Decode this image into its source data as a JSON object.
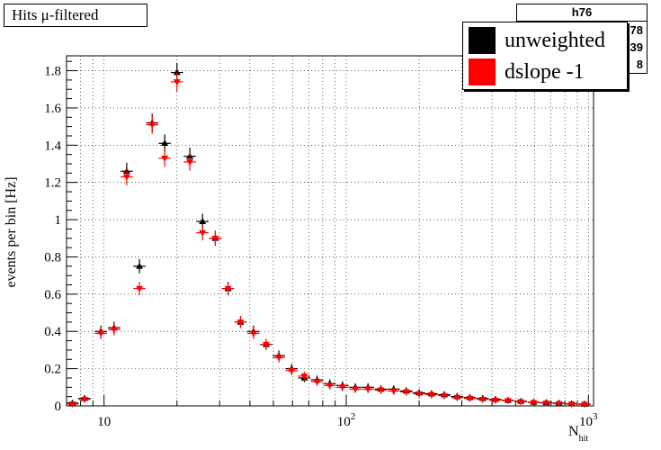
{
  "title": "Hits μ-filtered",
  "stats": {
    "name": "h76",
    "rows": [
      "78",
      "39",
      "8"
    ]
  },
  "legend": [
    {
      "label": "unweighted",
      "color": "#000000"
    },
    {
      "label": "dslope -1",
      "color": "#ff0000"
    }
  ],
  "chart_data": {
    "type": "scatter",
    "xlabel": "N",
    "xlabel_sub": "hit",
    "ylabel": "events per bin [Hz]",
    "xscale": "log",
    "xlim": [
      7,
      1050
    ],
    "ylim": [
      0,
      1.88
    ],
    "xticks": [
      {
        "value": 10,
        "base": "10",
        "exp": ""
      },
      {
        "value": 100,
        "base": "10",
        "exp": "2"
      },
      {
        "value": 1000,
        "base": "10",
        "exp": "3"
      }
    ],
    "yticks": [
      "0",
      "0.2",
      "0.4",
      "0.6",
      "0.8",
      "1",
      "1.2",
      "1.4",
      "1.6",
      "1.8"
    ],
    "grid": true,
    "series": [
      {
        "name": "unweighted",
        "color": "#000000",
        "marker": "triangle-up",
        "points": [
          [
            7.4,
            0.015
          ],
          [
            8.3,
            0.04
          ],
          [
            9.7,
            0.4
          ],
          [
            11.0,
            0.42
          ],
          [
            12.4,
            1.26
          ],
          [
            14.0,
            0.75
          ],
          [
            15.8,
            1.52
          ],
          [
            17.8,
            1.41
          ],
          [
            20.0,
            1.79
          ],
          [
            22.6,
            1.34
          ],
          [
            25.5,
            0.99
          ],
          [
            28.8,
            0.9
          ],
          [
            32.5,
            0.63
          ],
          [
            36.6,
            0.45
          ],
          [
            41.4,
            0.4
          ],
          [
            46.7,
            0.33
          ],
          [
            52.7,
            0.27
          ],
          [
            59.5,
            0.2
          ],
          [
            67.1,
            0.15
          ],
          [
            75.8,
            0.14
          ],
          [
            85.5,
            0.12
          ],
          [
            96.5,
            0.11
          ],
          [
            109,
            0.1
          ],
          [
            123,
            0.1
          ],
          [
            139,
            0.09
          ],
          [
            157,
            0.09
          ],
          [
            177,
            0.08
          ],
          [
            200,
            0.07
          ],
          [
            225,
            0.065
          ],
          [
            254,
            0.06
          ],
          [
            287,
            0.05
          ],
          [
            324,
            0.045
          ],
          [
            366,
            0.04
          ],
          [
            413,
            0.035
          ],
          [
            466,
            0.03
          ],
          [
            526,
            0.025
          ],
          [
            594,
            0.02
          ],
          [
            670,
            0.018
          ],
          [
            756,
            0.015
          ],
          [
            853,
            0.012
          ],
          [
            963,
            0.01
          ]
        ]
      },
      {
        "name": "dslope -1",
        "color": "#ff0000",
        "marker": "triangle-down",
        "points": [
          [
            7.4,
            0.01
          ],
          [
            8.3,
            0.035
          ],
          [
            9.7,
            0.39
          ],
          [
            11.0,
            0.41
          ],
          [
            12.4,
            1.23
          ],
          [
            14.0,
            0.63
          ],
          [
            15.8,
            1.51
          ],
          [
            17.8,
            1.33
          ],
          [
            20.0,
            1.74
          ],
          [
            22.6,
            1.31
          ],
          [
            25.5,
            0.93
          ],
          [
            28.8,
            0.9
          ],
          [
            32.5,
            0.63
          ],
          [
            36.6,
            0.45
          ],
          [
            41.4,
            0.39
          ],
          [
            46.7,
            0.33
          ],
          [
            52.7,
            0.26
          ],
          [
            59.5,
            0.19
          ],
          [
            67.1,
            0.16
          ],
          [
            75.8,
            0.13
          ],
          [
            85.5,
            0.11
          ],
          [
            96.5,
            0.1
          ],
          [
            109,
            0.09
          ],
          [
            123,
            0.09
          ],
          [
            139,
            0.085
          ],
          [
            157,
            0.08
          ],
          [
            177,
            0.075
          ],
          [
            200,
            0.065
          ],
          [
            225,
            0.06
          ],
          [
            254,
            0.055
          ],
          [
            287,
            0.045
          ],
          [
            324,
            0.04
          ],
          [
            366,
            0.035
          ],
          [
            413,
            0.03
          ],
          [
            466,
            0.028
          ],
          [
            526,
            0.022
          ],
          [
            594,
            0.018
          ],
          [
            670,
            0.015
          ],
          [
            756,
            0.012
          ],
          [
            853,
            0.01
          ],
          [
            963,
            0.008
          ]
        ]
      }
    ]
  }
}
